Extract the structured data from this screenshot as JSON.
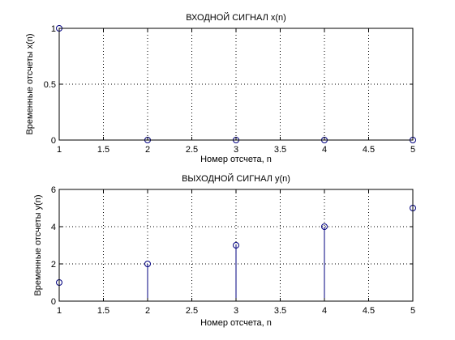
{
  "figure": {
    "background": "#ffffff",
    "stem_color": "#00007f"
  },
  "chart_data": [
    {
      "type": "stem",
      "title": "ВХОДНОЙ СИГНАЛ x(n)",
      "xlabel": "Номер отсчета, n",
      "ylabel": "Временные отсчеты x(n)",
      "x": [
        1,
        2,
        3,
        4,
        5
      ],
      "y": [
        1,
        0,
        0,
        0,
        0
      ],
      "xlim": [
        1,
        5
      ],
      "ylim": [
        0,
        1
      ],
      "xticks": [
        1,
        1.5,
        2,
        2.5,
        3,
        3.5,
        4,
        4.5,
        5
      ],
      "xtick_labels": [
        "1",
        "1.5",
        "2",
        "2.5",
        "3",
        "3.5",
        "4",
        "4.5",
        "5"
      ],
      "yticks": [
        0,
        0.5,
        1
      ],
      "ytick_labels": [
        "0",
        "0.5",
        "1"
      ],
      "grid": true,
      "marker": "circle"
    },
    {
      "type": "stem",
      "title": "ВЫХОДНОЙ СИГНАЛ y(n)",
      "xlabel": "Номер отсчета, n",
      "ylabel": "Временные отсчеты y(n)",
      "x": [
        1,
        2,
        3,
        4,
        5
      ],
      "y": [
        1,
        2,
        3,
        4,
        5
      ],
      "xlim": [
        1,
        5
      ],
      "ylim": [
        0,
        6
      ],
      "xticks": [
        1,
        1.5,
        2,
        2.5,
        3,
        3.5,
        4,
        4.5,
        5
      ],
      "xtick_labels": [
        "1",
        "1.5",
        "2",
        "2.5",
        "3",
        "3.5",
        "4",
        "4.5",
        "5"
      ],
      "yticks": [
        0,
        2,
        4,
        6
      ],
      "ytick_labels": [
        "0",
        "2",
        "4",
        "6"
      ],
      "grid": true,
      "marker": "circle"
    }
  ]
}
